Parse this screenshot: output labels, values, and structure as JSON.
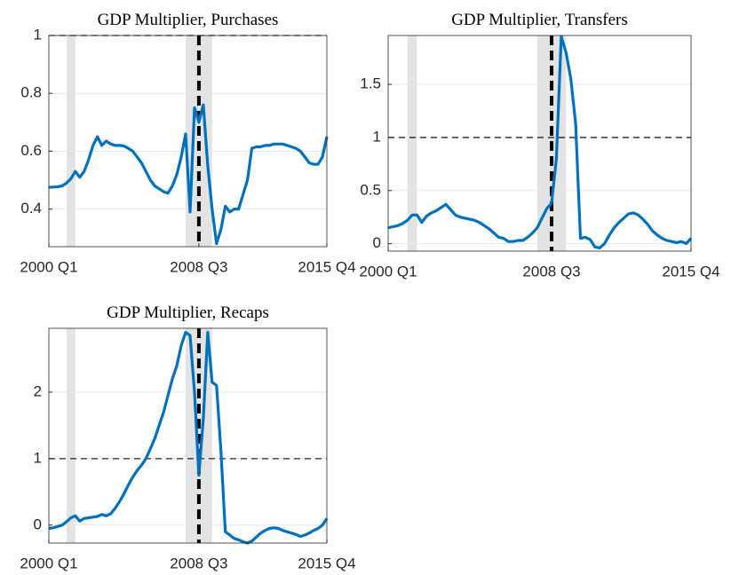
{
  "chart_data": [
    {
      "type": "line",
      "title": "GDP Multiplier, Purchases",
      "categories": [
        "2000 Q1",
        null,
        null,
        null,
        null,
        null,
        null,
        null,
        null,
        null,
        null,
        null,
        null,
        null,
        null,
        null,
        null,
        null,
        null,
        null,
        null,
        null,
        null,
        null,
        null,
        null,
        null,
        null,
        null,
        null,
        null,
        null,
        null,
        null,
        "2008 Q3",
        null,
        null,
        null,
        null,
        null,
        null,
        null,
        null,
        null,
        null,
        null,
        null,
        null,
        null,
        null,
        null,
        null,
        null,
        null,
        null,
        null,
        null,
        null,
        null,
        null,
        null,
        null,
        null,
        "2015 Q4"
      ],
      "values": [
        0.475,
        0.476,
        0.477,
        0.48,
        0.49,
        0.505,
        0.53,
        0.51,
        0.53,
        0.57,
        0.62,
        0.65,
        0.62,
        0.635,
        0.625,
        0.62,
        0.62,
        0.618,
        0.61,
        0.6,
        0.58,
        0.56,
        0.53,
        0.5,
        0.48,
        0.47,
        0.46,
        0.455,
        0.48,
        0.52,
        0.58,
        0.66,
        0.39,
        0.75,
        0.7,
        0.76,
        0.55,
        0.4,
        0.28,
        0.33,
        0.41,
        0.39,
        0.4,
        0.4,
        0.45,
        0.5,
        0.61,
        0.615,
        0.615,
        0.62,
        0.62,
        0.625,
        0.625,
        0.625,
        0.62,
        0.615,
        0.61,
        0.6,
        0.58,
        0.56,
        0.555,
        0.555,
        0.58,
        0.65
      ],
      "color": "#0072bd",
      "ylim": [
        0.27,
        1
      ],
      "yticks": [
        0.4,
        0.6,
        0.8,
        1
      ],
      "grid": true,
      "hline": 1,
      "vline": 34,
      "shaded": [
        [
          4,
          6
        ],
        [
          31,
          37
        ]
      ]
    },
    {
      "type": "line",
      "title": "GDP Multiplier, Transfers",
      "categories": [
        "2000 Q1",
        null,
        null,
        null,
        null,
        null,
        null,
        null,
        null,
        null,
        null,
        null,
        null,
        null,
        null,
        null,
        null,
        null,
        null,
        null,
        null,
        null,
        null,
        null,
        null,
        null,
        null,
        null,
        null,
        null,
        null,
        null,
        null,
        null,
        "2008 Q3",
        null,
        null,
        null,
        null,
        null,
        null,
        null,
        null,
        null,
        null,
        null,
        null,
        null,
        null,
        null,
        null,
        null,
        null,
        null,
        null,
        null,
        null,
        null,
        null,
        null,
        null,
        null,
        null,
        "2015 Q4"
      ],
      "values": [
        0.15,
        0.16,
        0.17,
        0.19,
        0.22,
        0.27,
        0.27,
        0.2,
        0.26,
        0.29,
        0.31,
        0.34,
        0.37,
        0.32,
        0.27,
        0.25,
        0.24,
        0.23,
        0.22,
        0.2,
        0.17,
        0.14,
        0.1,
        0.06,
        0.05,
        0.02,
        0.02,
        0.03,
        0.03,
        0.06,
        0.1,
        0.15,
        0.24,
        0.33,
        0.38,
        0.8,
        1.95,
        1.8,
        1.55,
        1.13,
        0.05,
        0.06,
        0.04,
        -0.03,
        -0.04,
        0,
        0.08,
        0.15,
        0.2,
        0.24,
        0.28,
        0.29,
        0.27,
        0.23,
        0.18,
        0.12,
        0.08,
        0.05,
        0.03,
        0.02,
        0.01,
        0.02,
        0,
        0.05
      ],
      "color": "#0072bd",
      "ylim": [
        -0.07,
        1.96
      ],
      "yticks": [
        0,
        0.5,
        1,
        1.5
      ],
      "grid": true,
      "hline": 1,
      "vline": 34,
      "shaded": [
        [
          4,
          6
        ],
        [
          31,
          37
        ]
      ]
    },
    {
      "type": "line",
      "title": "GDP Multiplier, Recaps",
      "categories": [
        "2000 Q1",
        null,
        null,
        null,
        null,
        null,
        null,
        null,
        null,
        null,
        null,
        null,
        null,
        null,
        null,
        null,
        null,
        null,
        null,
        null,
        null,
        null,
        null,
        null,
        null,
        null,
        null,
        null,
        null,
        null,
        null,
        null,
        null,
        null,
        "2008 Q3",
        null,
        null,
        null,
        null,
        null,
        null,
        null,
        null,
        null,
        null,
        null,
        null,
        null,
        null,
        null,
        null,
        null,
        null,
        null,
        null,
        null,
        null,
        null,
        null,
        null,
        null,
        null,
        null,
        "2015 Q4"
      ],
      "values": [
        -0.05,
        -0.04,
        -0.02,
        0,
        0.05,
        0.11,
        0.14,
        0.06,
        0.1,
        0.11,
        0.12,
        0.13,
        0.16,
        0.14,
        0.17,
        0.25,
        0.35,
        0.47,
        0.6,
        0.72,
        0.82,
        0.9,
        1,
        1.15,
        1.3,
        1.5,
        1.7,
        1.95,
        2.2,
        2.4,
        2.7,
        2.9,
        2.85,
        2,
        0.75,
        1.6,
        2.9,
        2.15,
        2.1,
        1.1,
        -0.1,
        -0.15,
        -0.2,
        -0.22,
        -0.25,
        -0.27,
        -0.24,
        -0.18,
        -0.12,
        -0.08,
        -0.05,
        -0.04,
        -0.05,
        -0.08,
        -0.1,
        -0.12,
        -0.14,
        -0.17,
        -0.15,
        -0.12,
        -0.08,
        -0.05,
        0,
        0.1
      ],
      "color": "#0072bd",
      "ylim": [
        -0.27,
        2.96
      ],
      "yticks": [
        0,
        1,
        2
      ],
      "grid": true,
      "hline": 1,
      "vline": 34,
      "shaded": [
        [
          4,
          6
        ],
        [
          31,
          37
        ]
      ]
    }
  ]
}
